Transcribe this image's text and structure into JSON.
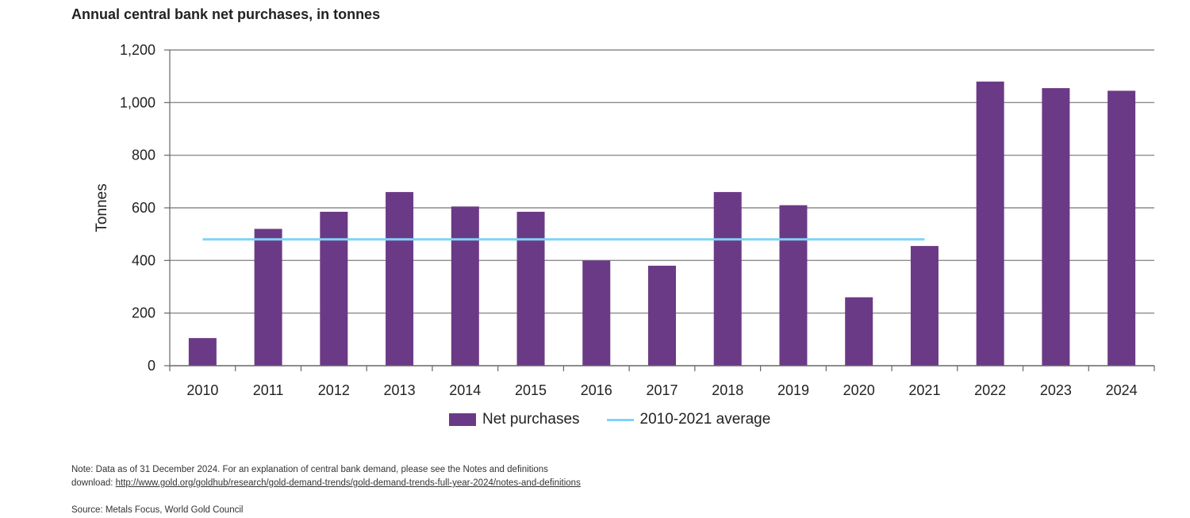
{
  "page": {
    "title": "Annual central bank net purchases, in tonnes",
    "note_line1": "Note: Data as of 31 December 2024. For an explanation of central bank demand, please see the Notes and definitions",
    "note_prefix": "download: ",
    "note_url": "http://www.gold.org/goldhub/research/gold-demand-trends/gold-demand-trends-full-year-2024/notes-and-definitions",
    "source": "Source: Metals Focus, World Gold Council"
  },
  "chart_data": {
    "type": "bar",
    "title": "Annual central bank net purchases, in tonnes",
    "ylabel": "Tonnes",
    "xlabel": "",
    "ylim": [
      0,
      1200
    ],
    "yticks": [
      0,
      200,
      400,
      600,
      800,
      1000,
      1200
    ],
    "ytick_labels": [
      "0",
      "200",
      "400",
      "600",
      "800",
      "1,000",
      "1,200"
    ],
    "categories": [
      "2010",
      "2011",
      "2012",
      "2013",
      "2014",
      "2015",
      "2016",
      "2017",
      "2018",
      "2019",
      "2020",
      "2021",
      "2022",
      "2023",
      "2024"
    ],
    "series": [
      {
        "name": "Net purchases",
        "color": "#6b3a86",
        "values": [
          105,
          520,
          585,
          660,
          605,
          585,
          400,
          380,
          660,
          610,
          260,
          455,
          1080,
          1055,
          1045
        ]
      }
    ],
    "average_line": {
      "name": "2010-2021 average",
      "color": "#7fd3f7",
      "value": 480,
      "from": "2010",
      "to": "2021"
    },
    "grid": true,
    "legend_placement": "bottom-center"
  }
}
